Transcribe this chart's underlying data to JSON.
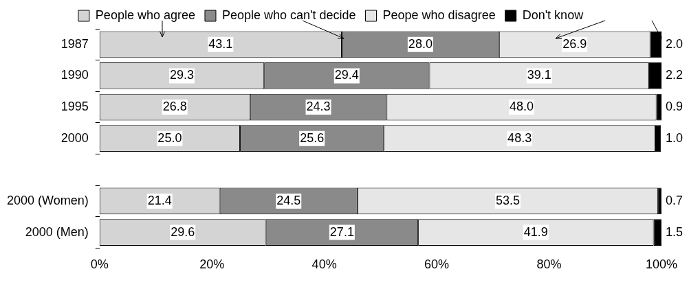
{
  "chart_data": {
    "type": "bar",
    "orientation": "horizontal",
    "stacked": true,
    "legend": "top",
    "categories": [
      "1987",
      "1990",
      "1995",
      "2000",
      null,
      "2000 (Women)",
      "2000 (Men)"
    ],
    "series": [
      {
        "name": "People who agree",
        "color": "#d4d4d4",
        "values": [
          43.1,
          29.3,
          26.8,
          25.0,
          null,
          21.4,
          29.6
        ],
        "value_labels": [
          "43.1",
          "29.3",
          "26.8",
          "25.0",
          null,
          "21.4",
          "29.6"
        ]
      },
      {
        "name": "People who can't decide",
        "color": "#8a8a8a",
        "values": [
          28.0,
          29.4,
          24.3,
          25.6,
          null,
          24.5,
          27.1
        ],
        "value_labels": [
          "28.0",
          "29.4",
          "24.3",
          "25.6",
          null,
          "24.5",
          "27.1"
        ]
      },
      {
        "name": "Peope who disagree",
        "color": "#e6e6e6",
        "values": [
          26.9,
          39.1,
          48.0,
          48.3,
          null,
          53.5,
          41.9
        ],
        "value_labels": [
          "26.9",
          "39.1",
          "48.0",
          "48.3",
          null,
          "53.5",
          "41.9"
        ]
      },
      {
        "name": "Don't know",
        "color": "#000000",
        "values": [
          2.0,
          2.2,
          0.9,
          1.0,
          null,
          0.7,
          1.5
        ],
        "value_labels": [
          "2.0",
          "2.2",
          "0.9",
          "1.0",
          null,
          "0.7",
          "1.5"
        ]
      }
    ],
    "xlim": [
      0,
      100
    ],
    "xticks": [
      {
        "value": 0,
        "label": "0%"
      },
      {
        "value": 20,
        "label": "20%"
      },
      {
        "value": 40,
        "label": "40%"
      },
      {
        "value": 60,
        "label": "60%"
      },
      {
        "value": 80,
        "label": "80%"
      },
      {
        "value": 100,
        "label": "100%"
      }
    ],
    "grid": false
  }
}
